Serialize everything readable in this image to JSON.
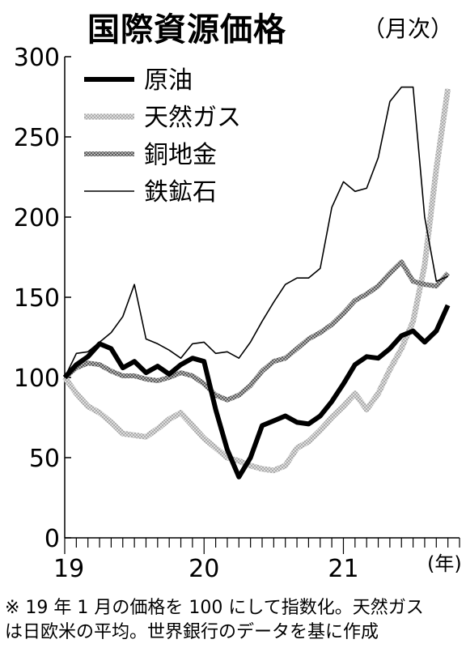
{
  "title": "国際資源価格",
  "subtitle": "（月次）",
  "note": {
    "line1": "※ 19 年 1 月の価格を 100 にして指数化。天然ガス",
    "line2": "は日欧米の平均。世界銀行のデータを基に作成"
  },
  "chart_data": {
    "type": "line",
    "title": "国際資源価格",
    "ylim": [
      0,
      300
    ],
    "yticks": [
      0,
      50,
      100,
      150,
      200,
      250,
      300
    ],
    "yticklabels": [
      "0",
      "50",
      "100",
      "150",
      "200",
      "250",
      "300"
    ],
    "xlim": [
      0,
      34
    ],
    "xticks": [
      0,
      12,
      24
    ],
    "xticklabels": [
      "19",
      "20",
      "21"
    ],
    "xlabel_unit": "(年)",
    "x": [
      0,
      1,
      2,
      3,
      4,
      5,
      6,
      7,
      8,
      9,
      10,
      11,
      12,
      13,
      14,
      15,
      16,
      17,
      18,
      19,
      20,
      21,
      22,
      23,
      24,
      25,
      26,
      27,
      28,
      29,
      30,
      31,
      32,
      33,
      34
    ],
    "legend_position": "top-left",
    "grid": false,
    "series": [
      {
        "name": "原油",
        "style": "thick-black",
        "values": [
          100,
          108,
          113,
          121,
          118,
          106,
          110,
          103,
          107,
          102,
          108,
          112,
          110,
          80,
          55,
          38,
          50,
          70,
          73,
          76,
          72,
          71,
          76,
          85,
          96,
          108,
          113,
          112,
          118,
          126,
          129,
          122,
          129,
          145,
          null
        ]
      },
      {
        "name": "天然ガス",
        "style": "light-dotted",
        "values": [
          100,
          90,
          82,
          78,
          72,
          65,
          64,
          63,
          68,
          74,
          78,
          70,
          62,
          56,
          50,
          48,
          45,
          43,
          42,
          45,
          56,
          60,
          67,
          75,
          82,
          90,
          80,
          90,
          105,
          118,
          135,
          170,
          230,
          280,
          null
        ]
      },
      {
        "name": "銅地金",
        "style": "gray-dotted",
        "values": [
          100,
          106,
          109,
          108,
          104,
          101,
          101,
          99,
          98,
          100,
          103,
          101,
          96,
          89,
          86,
          89,
          95,
          104,
          110,
          112,
          118,
          124,
          128,
          133,
          140,
          148,
          152,
          157,
          165,
          172,
          160,
          158,
          157,
          165,
          null
        ]
      },
      {
        "name": "鉄鉱石",
        "style": "thin-black",
        "values": [
          100,
          115,
          116,
          122,
          128,
          138,
          158,
          124,
          121,
          117,
          112,
          121,
          122,
          115,
          116,
          112,
          122,
          135,
          147,
          158,
          162,
          162,
          168,
          206,
          222,
          216,
          218,
          237,
          272,
          281,
          281,
          200,
          160,
          163,
          null
        ]
      }
    ]
  }
}
